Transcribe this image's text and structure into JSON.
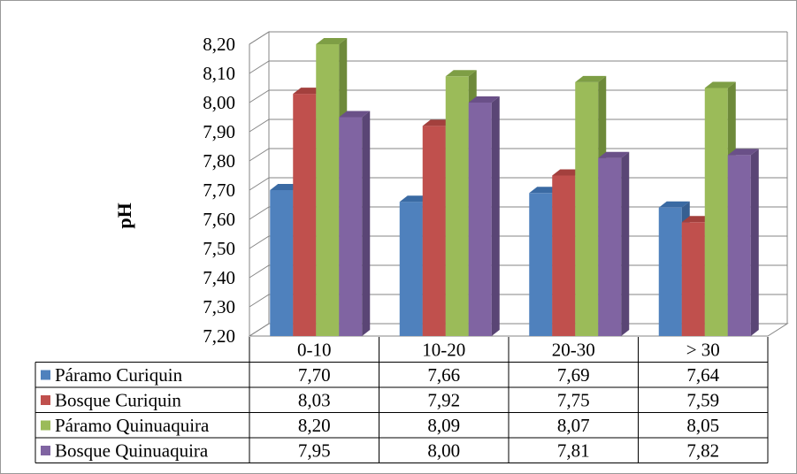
{
  "chart_data": {
    "type": "bar",
    "subtype": "3d-clustered-column-with-data-table",
    "title": "",
    "xlabel": "",
    "ylabel": "pH",
    "ylim": [
      7.2,
      8.2
    ],
    "yticks": [
      "7,20",
      "7,30",
      "7,40",
      "7,50",
      "7,60",
      "7,70",
      "7,80",
      "7,90",
      "8,00",
      "8,10",
      "8,20"
    ],
    "categories": [
      "0-10",
      "10-20",
      "20-30",
      "> 30"
    ],
    "grid": true,
    "legend": "data-table-left",
    "series": [
      {
        "name": "Páramo Curiquin",
        "values": [
          7.7,
          7.66,
          7.69,
          7.64
        ],
        "labels": [
          "7,70",
          "7,66",
          "7,69",
          "7,64"
        ],
        "color": "#4F81BD",
        "side": "#365F91",
        "top": "#3A6AA3"
      },
      {
        "name": "Bosque Curiquin",
        "values": [
          8.03,
          7.92,
          7.75,
          7.59
        ],
        "labels": [
          "8,03",
          "7,92",
          "7,75",
          "7,59"
        ],
        "color": "#C0504D",
        "side": "#8E3836",
        "top": "#A3403D"
      },
      {
        "name": "Páramo Quinuaquira",
        "values": [
          8.2,
          8.09,
          8.07,
          8.05
        ],
        "labels": [
          "8,20",
          "8,09",
          "8,07",
          "8,05"
        ],
        "color": "#9BBB59",
        "side": "#6E8A3A",
        "top": "#7E9E45"
      },
      {
        "name": "Bosque Quinuaquira",
        "values": [
          7.95,
          8.0,
          7.81,
          7.82
        ],
        "labels": [
          "7,95",
          "8,00",
          "7,81",
          "7,82"
        ],
        "color": "#8064A2",
        "side": "#5A4575",
        "top": "#6A5088"
      }
    ]
  }
}
